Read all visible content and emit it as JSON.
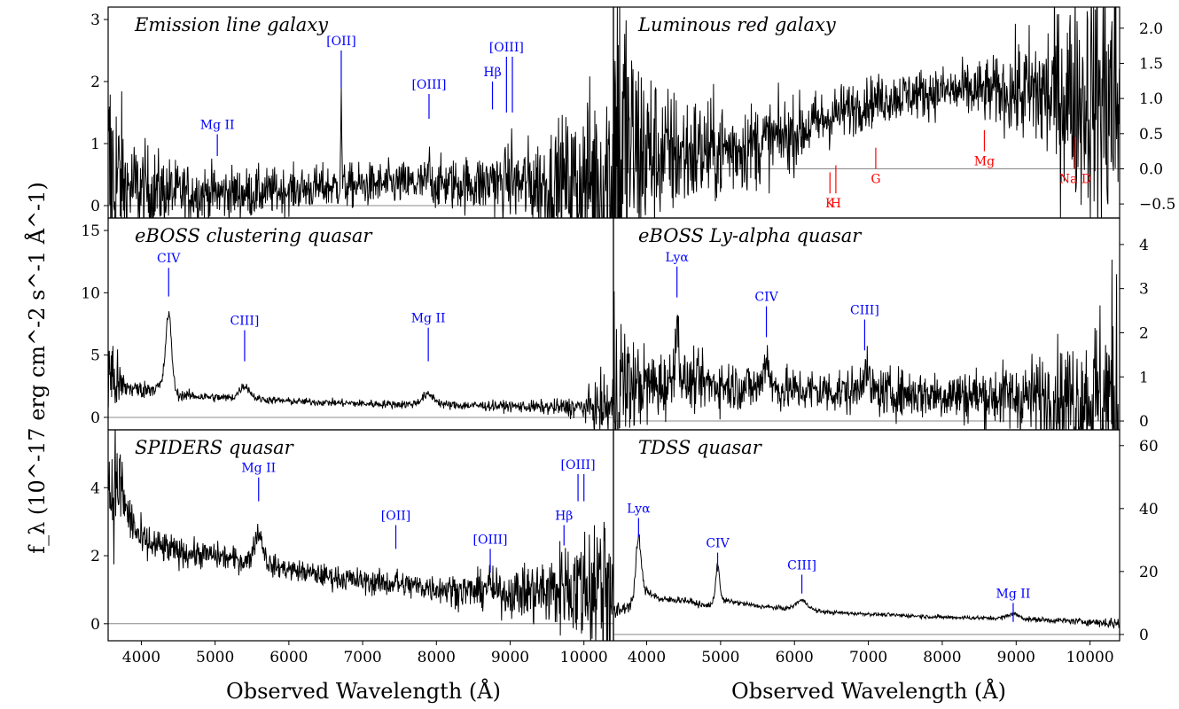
{
  "figure": {
    "ylabel": "f_λ (10^-17 erg cm^-2 s^-1 Å^-1)",
    "xlabel_left": "Observed Wavelength (Å)",
    "xlabel_right": "Observed Wavelength (Å)"
  },
  "chart_data": [
    {
      "type": "line",
      "title": "Emission line galaxy",
      "xlabel": "",
      "ylabel": "",
      "xlim": [
        3550,
        10400
      ],
      "ylim": [
        -0.2,
        3.2
      ],
      "xticks": [],
      "yticks": [
        0,
        1,
        2,
        3
      ],
      "ytick_labels": [
        "0",
        "1",
        "2",
        "3"
      ],
      "ytick_side": "left",
      "continuum": [
        [
          3600,
          0.4
        ],
        [
          3800,
          0.3
        ],
        [
          4500,
          0.2
        ],
        [
          5500,
          0.2
        ],
        [
          6500,
          0.3
        ],
        [
          7500,
          0.35
        ],
        [
          8500,
          0.35
        ],
        [
          9000,
          0.35
        ],
        [
          9500,
          0.35
        ],
        [
          10000,
          0.4
        ],
        [
          10350,
          0.45
        ]
      ],
      "noise": [
        [
          3600,
          1.6
        ],
        [
          3800,
          0.6
        ],
        [
          4500,
          0.35
        ],
        [
          6000,
          0.25
        ],
        [
          7500,
          0.25
        ],
        [
          8300,
          0.3
        ],
        [
          9000,
          0.4
        ],
        [
          9500,
          0.6
        ],
        [
          10000,
          0.9
        ],
        [
          10350,
          1.6
        ]
      ],
      "peaks": [
        [
          6710,
          1.3,
          8
        ],
        [
          7900,
          0.35,
          10
        ],
        [
          8760,
          0.3,
          10
        ],
        [
          8950,
          0.25,
          8
        ],
        [
          9020,
          0.35,
          8
        ]
      ],
      "annotations": [
        {
          "label": "Mg II",
          "x": 5030,
          "y0": 0.8,
          "y1": 1.15,
          "color": "#0000ff"
        },
        {
          "label": "[OII]",
          "x": 6710,
          "y0": 1.9,
          "y1": 2.5,
          "color": "#0000ff"
        },
        {
          "label": "[OIII]",
          "x": 7900,
          "y0": 1.4,
          "y1": 1.8,
          "color": "#0000ff"
        },
        {
          "label": "Hβ",
          "x": 8760,
          "y0": 1.55,
          "y1": 2.0,
          "color": "#0000ff"
        },
        {
          "label": "[OIII]",
          "x": 8950,
          "y0": 1.5,
          "y1": 2.4,
          "color": "#0000ff"
        },
        {
          "label": "",
          "x": 9030,
          "y0": 1.5,
          "y1": 2.4,
          "color": "#0000ff"
        }
      ]
    },
    {
      "type": "line",
      "title": "Luminous red galaxy",
      "xlabel": "",
      "ylabel": "",
      "xlim": [
        3550,
        10400
      ],
      "ylim": [
        -0.7,
        2.3
      ],
      "xticks": [],
      "yticks": [
        -0.5,
        0,
        0.5,
        1,
        1.5,
        2
      ],
      "ytick_labels": [
        "−0.5",
        "0.0",
        "0.5",
        "1.0",
        "1.5",
        "2.0"
      ],
      "ytick_side": "right",
      "continuum": [
        [
          3600,
          0.3
        ],
        [
          4200,
          0.2
        ],
        [
          5000,
          0.25
        ],
        [
          5500,
          0.35
        ],
        [
          6000,
          0.5
        ],
        [
          6500,
          0.75
        ],
        [
          7000,
          0.95
        ],
        [
          7500,
          1.05
        ],
        [
          8000,
          1.1
        ],
        [
          8500,
          1.1
        ],
        [
          9000,
          1.1
        ],
        [
          9500,
          1.05
        ],
        [
          10000,
          1.0
        ],
        [
          10350,
          1.0
        ]
      ],
      "noise": [
        [
          3600,
          2.5
        ],
        [
          3800,
          1.2
        ],
        [
          4200,
          0.7
        ],
        [
          5000,
          0.5
        ],
        [
          6000,
          0.35
        ],
        [
          7000,
          0.25
        ],
        [
          8000,
          0.25
        ],
        [
          8800,
          0.35
        ],
        [
          9300,
          0.7
        ],
        [
          10000,
          1.2
        ],
        [
          10350,
          1.8
        ]
      ],
      "peaks": [],
      "annotations": [
        {
          "label": "K",
          "x": 6480,
          "y0": -0.35,
          "y1": -0.05,
          "color": "#ff0000"
        },
        {
          "label": "H",
          "x": 6560,
          "y0": -0.35,
          "y1": 0.05,
          "color": "#ff0000"
        },
        {
          "label": "G",
          "x": 7100,
          "y0": 0.0,
          "y1": 0.3,
          "color": "#ff0000"
        },
        {
          "label": "Mg",
          "x": 8570,
          "y0": 0.25,
          "y1": 0.55,
          "color": "#ff0000"
        },
        {
          "label": "Na D",
          "x": 9800,
          "y0": 0.0,
          "y1": 0.45,
          "color": "#ff0000"
        }
      ]
    },
    {
      "type": "line",
      "title": "eBOSS clustering quasar",
      "xlabel": "",
      "ylabel": "",
      "xlim": [
        3550,
        10400
      ],
      "ylim": [
        -1,
        16
      ],
      "xticks": [],
      "yticks": [
        0,
        5,
        10,
        15
      ],
      "ytick_labels": [
        "0",
        "5",
        "10",
        "15"
      ],
      "ytick_side": "left",
      "continuum": [
        [
          3600,
          3.5
        ],
        [
          3700,
          2.5
        ],
        [
          4000,
          2.2
        ],
        [
          4300,
          2.5
        ],
        [
          4500,
          1.8
        ],
        [
          5000,
          1.6
        ],
        [
          5500,
          1.5
        ],
        [
          6000,
          1.3
        ],
        [
          7000,
          1.1
        ],
        [
          8000,
          1.0
        ],
        [
          9000,
          0.9
        ],
        [
          9500,
          0.8
        ],
        [
          10000,
          0.8
        ],
        [
          10350,
          0.8
        ]
      ],
      "noise": [
        [
          3600,
          2.5
        ],
        [
          3800,
          0.6
        ],
        [
          4500,
          0.3
        ],
        [
          6000,
          0.2
        ],
        [
          8000,
          0.25
        ],
        [
          9000,
          0.3
        ],
        [
          9500,
          0.4
        ],
        [
          10000,
          0.7
        ],
        [
          10350,
          2.0
        ]
      ],
      "peaks": [
        [
          4370,
          6.0,
          40
        ],
        [
          5400,
          1.0,
          70
        ],
        [
          7890,
          0.8,
          90
        ]
      ],
      "annotations": [
        {
          "label": "CIV",
          "x": 4370,
          "y0": 9.7,
          "y1": 12.0,
          "color": "#0000ff"
        },
        {
          "label": "CIII]",
          "x": 5400,
          "y0": 4.5,
          "y1": 7.0,
          "color": "#0000ff"
        },
        {
          "label": "Mg II",
          "x": 7890,
          "y0": 4.5,
          "y1": 7.2,
          "color": "#0000ff"
        }
      ]
    },
    {
      "type": "line",
      "title": "eBOSS Ly-alpha quasar",
      "xlabel": "",
      "ylabel": "",
      "xlim": [
        3550,
        10400
      ],
      "ylim": [
        -0.2,
        4.6
      ],
      "xticks": [],
      "yticks": [
        0,
        1,
        2,
        3,
        4
      ],
      "ytick_labels": [
        "0",
        "1",
        "2",
        "3",
        "4"
      ],
      "ytick_side": "right",
      "continuum": [
        [
          3600,
          0.8
        ],
        [
          4200,
          0.8
        ],
        [
          4400,
          0.9
        ],
        [
          4800,
          0.85
        ],
        [
          5500,
          0.75
        ],
        [
          6000,
          0.7
        ],
        [
          7000,
          0.65
        ],
        [
          8000,
          0.6
        ],
        [
          9000,
          0.55
        ],
        [
          10000,
          0.5
        ],
        [
          10350,
          0.5
        ]
      ],
      "noise": [
        [
          3600,
          1.6
        ],
        [
          3800,
          0.7
        ],
        [
          4500,
          0.45
        ],
        [
          6000,
          0.35
        ],
        [
          8000,
          0.4
        ],
        [
          9000,
          0.55
        ],
        [
          9500,
          0.8
        ],
        [
          10000,
          1.2
        ],
        [
          10350,
          2.0
        ]
      ],
      "peaks": [
        [
          4410,
          1.2,
          30
        ],
        [
          5620,
          0.7,
          40
        ],
        [
          6950,
          0.5,
          50
        ]
      ],
      "annotations": [
        {
          "label": "Lyα",
          "x": 4410,
          "y0": 2.8,
          "y1": 3.5,
          "color": "#0000ff"
        },
        {
          "label": "CIV",
          "x": 5620,
          "y0": 1.9,
          "y1": 2.6,
          "color": "#0000ff"
        },
        {
          "label": "CIII]",
          "x": 6950,
          "y0": 1.6,
          "y1": 2.3,
          "color": "#0000ff"
        }
      ]
    },
    {
      "type": "line",
      "title": "SPIDERS quasar",
      "xlabel": "",
      "ylabel": "",
      "xlim": [
        3550,
        10400
      ],
      "ylim": [
        -0.5,
        5.7
      ],
      "xticks": [
        4000,
        5000,
        6000,
        7000,
        8000,
        9000,
        10000
      ],
      "xtick_labels": [
        "4000",
        "5000",
        "6000",
        "7000",
        "8000",
        "9000",
        "10000"
      ],
      "yticks": [
        0,
        2,
        4
      ],
      "ytick_labels": [
        "0",
        "2",
        "4"
      ],
      "ytick_side": "left",
      "continuum": [
        [
          3620,
          4.0
        ],
        [
          3700,
          4.2
        ],
        [
          3800,
          3.3
        ],
        [
          4000,
          2.4
        ],
        [
          4500,
          2.1
        ],
        [
          5000,
          2.0
        ],
        [
          5500,
          1.8
        ],
        [
          6000,
          1.6
        ],
        [
          6500,
          1.4
        ],
        [
          7000,
          1.25
        ],
        [
          7500,
          1.15
        ],
        [
          8000,
          1.05
        ],
        [
          8500,
          0.95
        ],
        [
          9000,
          0.9
        ],
        [
          9500,
          0.95
        ],
        [
          10000,
          1.1
        ],
        [
          10350,
          1.3
        ]
      ],
      "noise": [
        [
          3600,
          1.5
        ],
        [
          3800,
          0.5
        ],
        [
          4500,
          0.3
        ],
        [
          6000,
          0.22
        ],
        [
          8000,
          0.3
        ],
        [
          9000,
          0.45
        ],
        [
          9500,
          0.8
        ],
        [
          10000,
          1.2
        ],
        [
          10350,
          2.5
        ]
      ],
      "peaks": [
        [
          5590,
          0.9,
          60
        ],
        [
          7450,
          0.15,
          15
        ],
        [
          8700,
          0.25,
          40
        ],
        [
          9730,
          0.3,
          25
        ]
      ],
      "annotations": [
        {
          "label": "Mg II",
          "x": 5590,
          "y0": 3.6,
          "y1": 4.3,
          "color": "#0000ff"
        },
        {
          "label": "[OII]",
          "x": 7450,
          "y0": 2.2,
          "y1": 2.9,
          "color": "#0000ff"
        },
        {
          "label": "[OIII]",
          "x": 8730,
          "y0": 1.5,
          "y1": 2.2,
          "color": "#0000ff"
        },
        {
          "label": "Hβ",
          "x": 9730,
          "y0": 2.3,
          "y1": 2.9,
          "color": "#0000ff"
        },
        {
          "label": "[OIII]",
          "x": 9920,
          "y0": 3.6,
          "y1": 4.4,
          "color": "#0000ff"
        },
        {
          "label": "",
          "x": 10000,
          "y0": 3.6,
          "y1": 4.4,
          "color": "#0000ff"
        }
      ]
    },
    {
      "type": "line",
      "title": "TDSS quasar",
      "xlabel": "",
      "ylabel": "",
      "xlim": [
        3550,
        10400
      ],
      "ylim": [
        -2,
        65
      ],
      "xticks": [
        4000,
        5000,
        6000,
        7000,
        8000,
        9000,
        10000
      ],
      "xtick_labels": [
        "4000",
        "5000",
        "6000",
        "7000",
        "8000",
        "9000",
        "10000"
      ],
      "yticks": [
        0,
        20,
        40,
        60
      ],
      "ytick_labels": [
        "0",
        "20",
        "40",
        "60"
      ],
      "ytick_side": "right",
      "continuum": [
        [
          3600,
          7
        ],
        [
          3800,
          10
        ],
        [
          4000,
          14
        ],
        [
          4200,
          11
        ],
        [
          4500,
          11
        ],
        [
          4800,
          9
        ],
        [
          5000,
          11
        ],
        [
          5500,
          9
        ],
        [
          6000,
          8
        ],
        [
          6500,
          7
        ],
        [
          7000,
          6.5
        ],
        [
          8000,
          5.5
        ],
        [
          9000,
          5
        ],
        [
          10000,
          4
        ],
        [
          10350,
          3.5
        ]
      ],
      "noise": [
        [
          3600,
          2.0
        ],
        [
          4000,
          1.0
        ],
        [
          5000,
          0.6
        ],
        [
          7000,
          0.4
        ],
        [
          9000,
          0.5
        ],
        [
          10000,
          0.8
        ],
        [
          10350,
          1.5
        ]
      ],
      "peaks": [
        [
          3890,
          19,
          35
        ],
        [
          4960,
          12,
          25
        ],
        [
          6100,
          3,
          80
        ],
        [
          8960,
          1.5,
          80
        ]
      ],
      "annotations": [
        {
          "label": "Lyα",
          "x": 3890,
          "y0": 31,
          "y1": 37,
          "color": "#0000ff"
        },
        {
          "label": "CIV",
          "x": 4960,
          "y0": 20,
          "y1": 26,
          "color": "#0000ff"
        },
        {
          "label": "CIII]",
          "x": 6100,
          "y0": 13,
          "y1": 19,
          "color": "#0000ff"
        },
        {
          "label": "Mg II",
          "x": 8960,
          "y0": 4,
          "y1": 10,
          "color": "#0000ff"
        }
      ]
    }
  ]
}
